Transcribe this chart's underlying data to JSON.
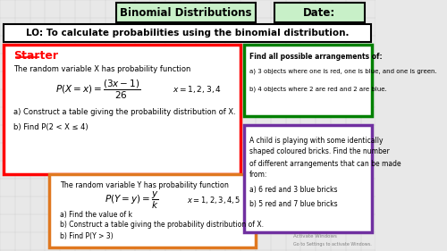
{
  "bg_color": "#e8e8e8",
  "title_text": "Binomial Distributions",
  "date_text": "Date:",
  "lo_text": "LO: To calculate probabilities using the binomial distribution.",
  "title_box_color": "#c8f0c8",
  "date_box_color": "#c8f0c8",
  "lo_box_color": "#ffffff",
  "starter_box_color": "#ff0000",
  "starter_title": "Starter",
  "starter_text1": "The random variable X has probability function",
  "starter_formula1a": "$P(X = x) = \\dfrac{(3x-1)}{26}$",
  "starter_formula1b": "$x = 1,2,3,4$",
  "starter_q1a": "a) Construct a table giving the probability distribution of X.",
  "starter_q1b": "b) Find P(2 < X ≤ 4)",
  "orange_box_color": "#e07820",
  "orange_text1": "The random variable Y has probability function",
  "orange_formula1a": "$P(Y = y) = \\dfrac{y}{k}$",
  "orange_formula1b": "$x = 1,2,3,4,5$",
  "orange_q1": "a) Find the value of k",
  "orange_q2": "b) Construct a table giving the probability distribution of X.",
  "orange_q3": "b) Find P(Y > 3)",
  "green_box_color": "#008000",
  "green_title": "Find all possible arrangements of:",
  "green_q1": "a) 3 objects where one is red, one is blue, and one is green.",
  "green_q2": "b) 4 objects where 2 are red and 2 are blue.",
  "purple_box_color": "#7030a0",
  "purple_text1": "A child is playing with some identically",
  "purple_text2": "shaped coloured bricks. Find the number",
  "purple_text3": "of different arrangements that can be made",
  "purple_text4": "from:",
  "purple_q1": "a) 6 red and 3 blue bricks",
  "purple_q2": "b) 5 red and 7 blue bricks"
}
